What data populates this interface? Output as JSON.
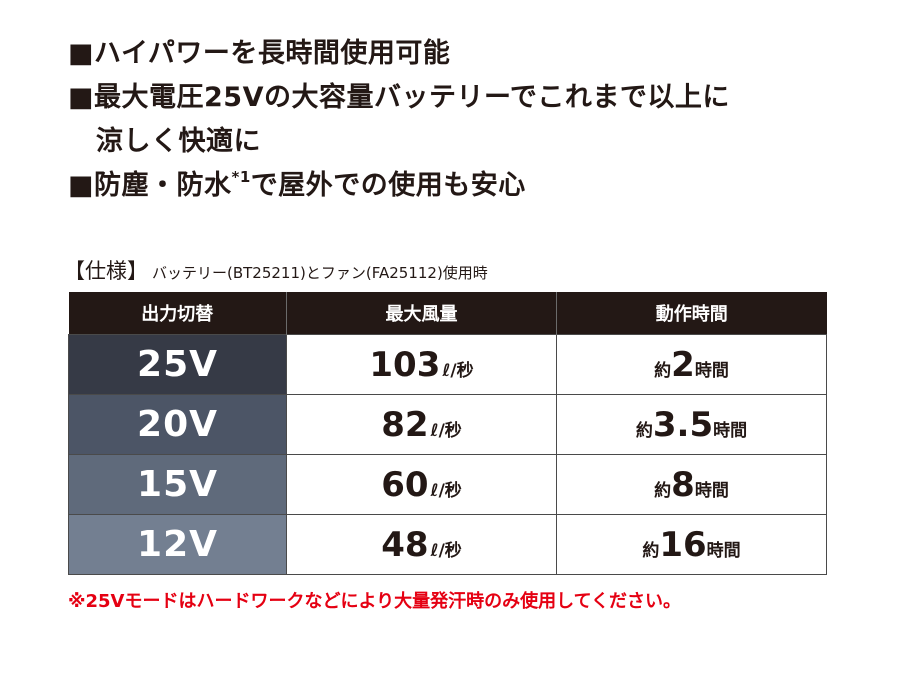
{
  "features": [
    {
      "text": "■ハイパワーを長時間使用可能"
    },
    {
      "text": "■最大電圧25Vの大容量バッテリーでこれまで以上に"
    },
    {
      "text": "涼しく快適に"
    },
    {
      "text": "■防塵・防水",
      "sup": "*1",
      "after": "で屋外での使用も安心"
    }
  ],
  "spec": {
    "label": "【仕様】",
    "subtitle": "バッテリー(BT25211)とファン(FA25112)使用時",
    "headers": [
      "出力切替",
      "最大風量",
      "動作時間"
    ],
    "rows": [
      {
        "voltage": "25V",
        "airflow": "103",
        "airflow_unit": "ℓ/秒",
        "time_prefix": "約",
        "time": "2",
        "time_unit": "時間"
      },
      {
        "voltage": "20V",
        "airflow": "82",
        "airflow_unit": "ℓ/秒",
        "time_prefix": "約",
        "time": "3.5",
        "time_unit": "時間"
      },
      {
        "voltage": "15V",
        "airflow": "60",
        "airflow_unit": "ℓ/秒",
        "time_prefix": "約",
        "time": "8",
        "time_unit": "時間"
      },
      {
        "voltage": "12V",
        "airflow": "48",
        "airflow_unit": "ℓ/秒",
        "time_prefix": "約",
        "time": "16",
        "time_unit": "時間"
      }
    ]
  },
  "note": "※25Vモードはハードワークなどにより大量発汗時のみ使用してください。",
  "colors": {
    "text": "#231815",
    "header_bg": "#231815",
    "note": "#e50012",
    "row_25v": "#363a46",
    "row_20v": "#4c5566",
    "row_15v": "#5f6a7b",
    "row_12v": "#737f91"
  }
}
